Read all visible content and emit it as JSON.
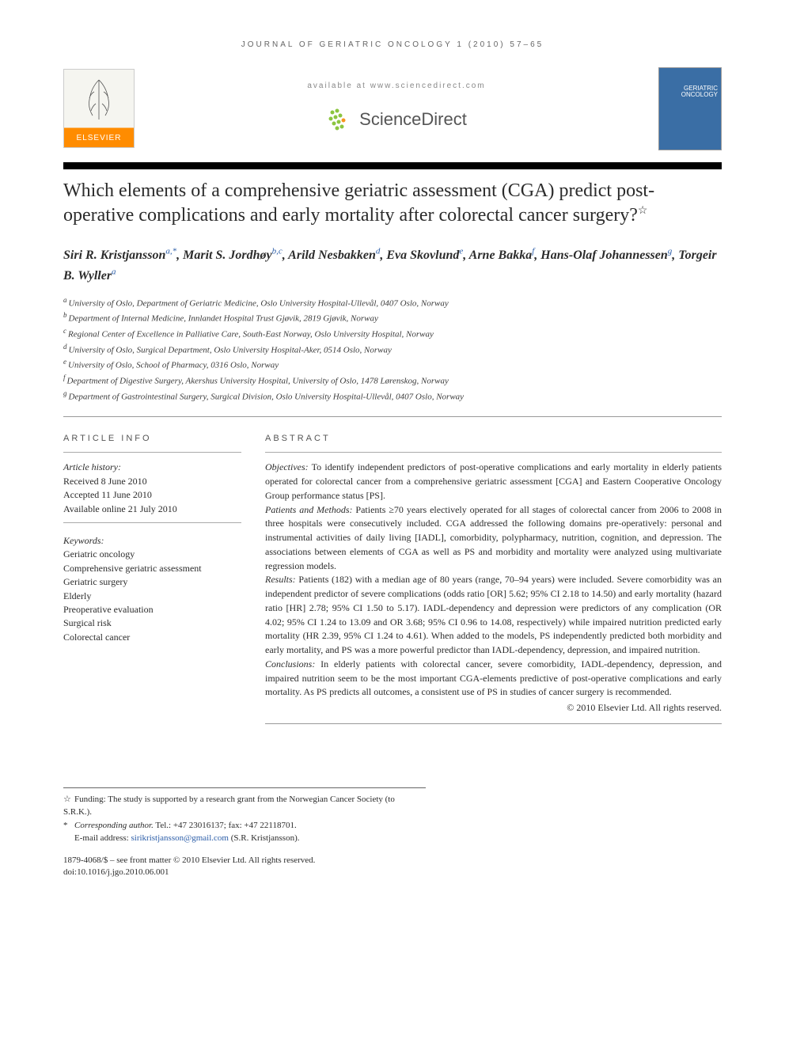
{
  "journal_ref": "JOURNAL OF GERIATRIC ONCOLOGY 1 (2010) 57–65",
  "header": {
    "elsevier_label": "ELSEVIER",
    "available_text": "available at www.sciencedirect.com",
    "sciencedirect_label": "ScienceDirect",
    "cover_title": "GERIATRIC ONCOLOGY"
  },
  "title": "Which elements of a comprehensive geriatric assessment (CGA) predict post-operative complications and early mortality after colorectal cancer surgery?",
  "title_note_symbol": "☆",
  "authors": [
    {
      "name": "Siri R. Kristjansson",
      "sup": "a,",
      "corr": "*"
    },
    {
      "name": "Marit S. Jordhøy",
      "sup": "b,c"
    },
    {
      "name": "Arild Nesbakken",
      "sup": "d"
    },
    {
      "name": "Eva Skovlund",
      "sup": "e"
    },
    {
      "name": "Arne Bakka",
      "sup": "f"
    },
    {
      "name": "Hans-Olaf Johannessen",
      "sup": "g"
    },
    {
      "name": "Torgeir B. Wyller",
      "sup": "a"
    }
  ],
  "affiliations": [
    {
      "sup": "a",
      "text": "University of Oslo, Department of Geriatric Medicine, Oslo University Hospital-Ullevål, 0407 Oslo, Norway"
    },
    {
      "sup": "b",
      "text": "Department of Internal Medicine, Innlandet Hospital Trust Gjøvik, 2819 Gjøvik, Norway"
    },
    {
      "sup": "c",
      "text": "Regional Center of Excellence in Palliative Care, South-East Norway, Oslo University Hospital, Norway"
    },
    {
      "sup": "d",
      "text": "University of Oslo, Surgical Department, Oslo University Hospital-Aker, 0514 Oslo, Norway"
    },
    {
      "sup": "e",
      "text": "University of Oslo, School of Pharmacy, 0316 Oslo, Norway"
    },
    {
      "sup": "f",
      "text": "Department of Digestive Surgery, Akershus University Hospital, University of Oslo, 1478 Lørenskog, Norway"
    },
    {
      "sup": "g",
      "text": "Department of Gastrointestinal Surgery, Surgical Division, Oslo University Hospital-Ullevål, 0407 Oslo, Norway"
    }
  ],
  "article_info": {
    "heading": "ARTICLE INFO",
    "history_label": "Article history:",
    "history": [
      "Received 8 June 2010",
      "Accepted 11 June 2010",
      "Available online 21 July 2010"
    ],
    "keywords_label": "Keywords:",
    "keywords": [
      "Geriatric oncology",
      "Comprehensive geriatric assessment",
      "Geriatric surgery",
      "Elderly",
      "Preoperative evaluation",
      "Surgical risk",
      "Colorectal cancer"
    ]
  },
  "abstract": {
    "heading": "ABSTRACT",
    "segments": [
      {
        "label": "Objectives:",
        "text": " To identify independent predictors of post-operative complications and early mortality in elderly patients operated for colorectal cancer from a comprehensive geriatric assessment [CGA] and Eastern Cooperative Oncology Group performance status [PS]."
      },
      {
        "label": "Patients and Methods:",
        "text": " Patients ≥70 years electively operated for all stages of colorectal cancer from 2006 to 2008 in three hospitals were consecutively included. CGA addressed the following domains pre-operatively: personal and instrumental activities of daily living [IADL], comorbidity, polypharmacy, nutrition, cognition, and depression. The associations between elements of CGA as well as PS and morbidity and mortality were analyzed using multivariate regression models."
      },
      {
        "label": "Results:",
        "text": " Patients (182) with a median age of 80 years (range, 70–94 years) were included. Severe comorbidity was an independent predictor of severe complications (odds ratio [OR] 5.62; 95% CI 2.18 to 14.50) and early mortality (hazard ratio [HR] 2.78; 95% CI 1.50 to 5.17). IADL-dependency and depression were predictors of any complication (OR 4.02; 95% CI 1.24 to 13.09 and OR 3.68; 95% CI 0.96 to 14.08, respectively) while impaired nutrition predicted early mortality (HR 2.39, 95% CI 1.24 to 4.61). When added to the models, PS independently predicted both morbidity and early mortality, and PS was a more powerful predictor than IADL-dependency, depression, and impaired nutrition."
      },
      {
        "label": "Conclusions:",
        "text": " In elderly patients with colorectal cancer, severe comorbidity, IADL-dependency, depression, and impaired nutrition seem to be the most important CGA-elements predictive of post-operative complications and early mortality. As PS predicts all outcomes, a consistent use of PS in studies of cancer surgery is recommended."
      }
    ],
    "copyright": "© 2010 Elsevier Ltd. All rights reserved."
  },
  "footnotes": {
    "funding_symbol": "☆",
    "funding": "Funding: The study is supported by a research grant from the Norwegian Cancer Society (to S.R.K.).",
    "corr_symbol": "*",
    "corr_label": "Corresponding author.",
    "corr_contact": " Tel.: +47 23016137; fax: +47 22118701.",
    "email_label": "E-mail address: ",
    "email": "sirikristjansson@gmail.com",
    "email_paren": " (S.R. Kristjansson)."
  },
  "doi": {
    "line1": "1879-4068/$ – see front matter © 2010 Elsevier Ltd. All rights reserved.",
    "line2": "doi:10.1016/j.jgo.2010.06.001"
  },
  "colors": {
    "link": "#2b5da8",
    "accent": "#ff8c00",
    "cover": "#3a6ea5",
    "sd_green": "#8bc53f",
    "sd_orange": "#f7941e"
  }
}
